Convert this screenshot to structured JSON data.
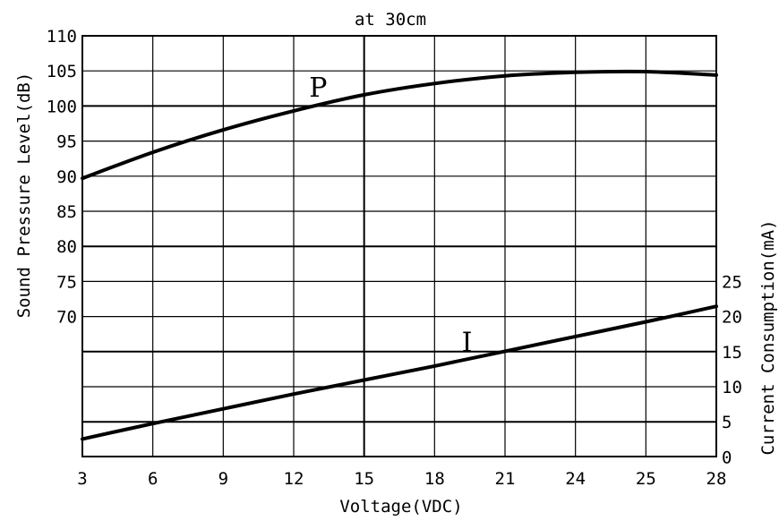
{
  "chart_data": {
    "type": "line",
    "title": "at 30cm",
    "xlabel": "Voltage(VDC)",
    "ylabel_left": "Sound Pressure Level(dB)",
    "ylabel_right": "Current Consumption(mA)",
    "x_tick_labels": [
      "3",
      "6",
      "9",
      "12",
      "15",
      "18",
      "21",
      "24",
      "25",
      "28"
    ],
    "y_left_tick_labels": [
      "110",
      "105",
      "100",
      "95",
      "90",
      "85",
      "80",
      "75",
      "70"
    ],
    "y_right_tick_labels": [
      "25",
      "20",
      "15",
      "10",
      "5",
      "0"
    ],
    "y_left_range": [
      70,
      110
    ],
    "y_right_range": [
      0,
      25
    ],
    "grid": true,
    "series": [
      {
        "name": "P",
        "axis": "left",
        "x": [
          3,
          6,
          9,
          12,
          15,
          18,
          21,
          24,
          25,
          28
        ],
        "y": [
          89.7,
          93.4,
          96.6,
          99.3,
          101.6,
          103.2,
          104.3,
          104.8,
          104.9,
          104.4
        ]
      },
      {
        "name": "I",
        "axis": "right",
        "x": [
          3,
          6,
          9,
          12,
          15,
          18,
          21,
          24,
          25,
          28
        ],
        "y": [
          2.5,
          4.7,
          6.8,
          8.9,
          10.9,
          12.9,
          15.0,
          17.1,
          19.2,
          21.4
        ]
      }
    ]
  }
}
